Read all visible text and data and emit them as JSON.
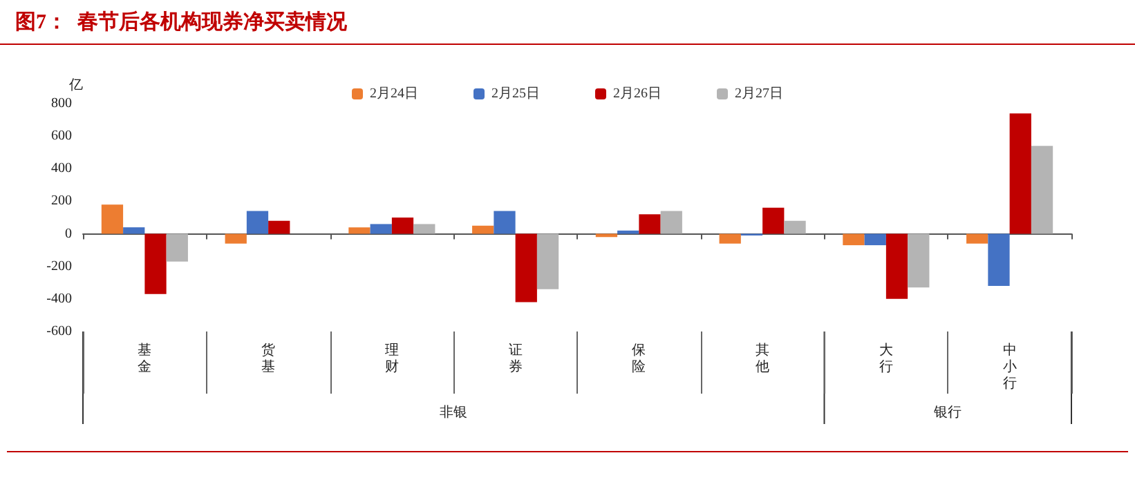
{
  "chart_data": {
    "type": "bar",
    "title": "图7：  春节后各机构现券净买卖情况",
    "ylabel": "亿",
    "categories": [
      "基金",
      "货基",
      "理财",
      "证券",
      "保险",
      "其他",
      "大行",
      "中小行"
    ],
    "series": [
      {
        "name": "2月24日",
        "color": "#ed7d31",
        "values": [
          180,
          -60,
          40,
          50,
          -20,
          -60,
          -70,
          -60
        ]
      },
      {
        "name": "2月25日",
        "color": "#4472c4",
        "values": [
          40,
          140,
          60,
          140,
          20,
          -10,
          -70,
          -320
        ]
      },
      {
        "name": "2月26日",
        "color": "#c00000",
        "values": [
          -370,
          80,
          100,
          -420,
          120,
          160,
          -400,
          740
        ]
      },
      {
        "name": "2月27日",
        "color": "#b4b4b4",
        "values": [
          -170,
          null,
          60,
          -340,
          140,
          80,
          -330,
          540
        ]
      }
    ],
    "annotations": [
      "非银",
      "银行"
    ],
    "ylim": [
      -600,
      800
    ],
    "yticks": [
      -600,
      -400,
      -200,
      0,
      200,
      400,
      600,
      800
    ],
    "legend": "top"
  }
}
